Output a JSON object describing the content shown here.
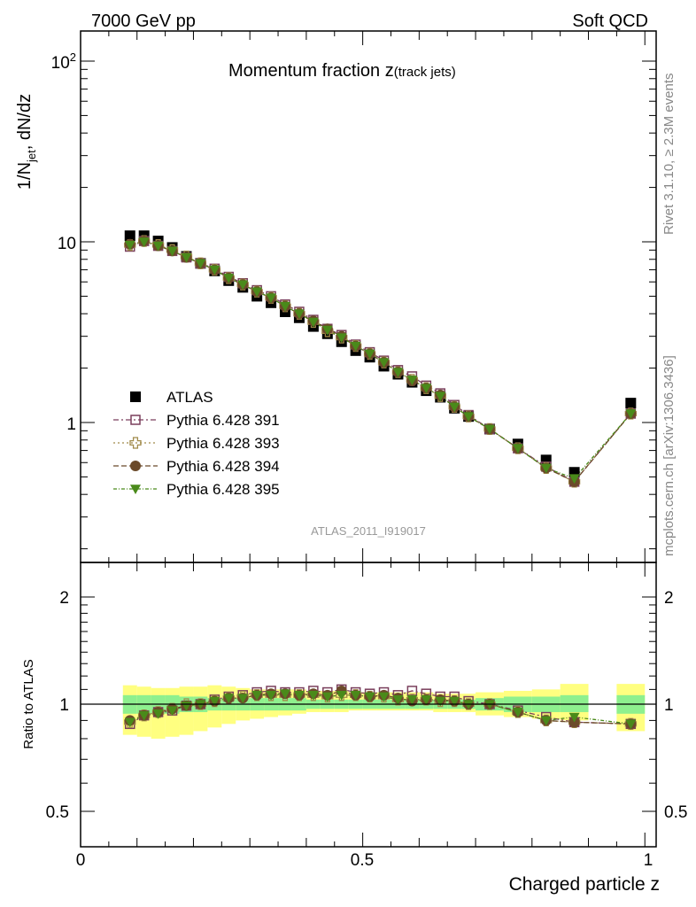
{
  "header": {
    "left": "7000 GeV pp",
    "right": "Soft QCD"
  },
  "chart_data": {
    "type": "scatter",
    "title": "Momentum fraction z",
    "title_suffix": "(track jets)",
    "xlabel": "Charged particle z",
    "ylabel": "1/N_jet dN/dz",
    "ylabel_main": "1/N",
    "ylabel_sub": "jet",
    "ylabel_tail": ", dN/dz",
    "ratio_ylabel": "Ratio to ATLAS",
    "xlim": [
      0,
      1.02
    ],
    "ylim": [
      0.18,
      150
    ],
    "ylog": true,
    "ratio_ylim": [
      0.4,
      2.3
    ],
    "ratio_ylog": true,
    "x_ticks": [
      "0",
      "0.5",
      "1"
    ],
    "y_ticks": [
      "10",
      "1"
    ],
    "y_tick_top_base": "10",
    "y_tick_top_exp": "2",
    "ratio_y_ticks": [
      "2",
      "1",
      "0.5"
    ],
    "analysis_label": "ATLAS_2011_I919017",
    "side_label_top": "Rivet 3.1.10, ≥ 2.3M events",
    "side_label_bottom": "mcplots.cern.ch [arXiv:1306.3436]",
    "x": [
      0.0875,
      0.1125,
      0.1375,
      0.1625,
      0.1875,
      0.2125,
      0.2375,
      0.2625,
      0.2875,
      0.3125,
      0.3375,
      0.3625,
      0.3875,
      0.4125,
      0.4375,
      0.4625,
      0.4875,
      0.5125,
      0.5375,
      0.5625,
      0.5875,
      0.6125,
      0.6375,
      0.6625,
      0.6875,
      0.725,
      0.775,
      0.825,
      0.875,
      0.975
    ],
    "data": {
      "name": "ATLAS",
      "values": [
        10.8,
        10.8,
        10.1,
        9.3,
        8.3,
        7.6,
        6.9,
        6.1,
        5.6,
        5.0,
        4.6,
        4.1,
        3.8,
        3.4,
        3.1,
        2.8,
        2.5,
        2.3,
        2.05,
        1.85,
        1.67,
        1.5,
        1.38,
        1.2,
        1.08,
        0.92,
        0.76,
        0.62,
        0.53,
        1.28
      ]
    },
    "series": [
      {
        "name": "Pythia 6.428 391",
        "color": "#7a3f5c",
        "marker": "square-open",
        "values": [
          9.4,
          10.1,
          9.5,
          8.9,
          8.2,
          7.6,
          7.1,
          6.4,
          5.9,
          5.4,
          5.0,
          4.5,
          4.1,
          3.7,
          3.3,
          3.05,
          2.7,
          2.45,
          2.2,
          1.95,
          1.8,
          1.6,
          1.45,
          1.25,
          1.1,
          0.92,
          0.72,
          0.57,
          0.47,
          1.12
        ]
      },
      {
        "name": "Pythia 6.428 393",
        "color": "#a08a4a",
        "marker": "cross-open",
        "values": [
          9.6,
          10.1,
          9.6,
          9.0,
          8.3,
          7.6,
          7.0,
          6.3,
          5.8,
          5.3,
          4.9,
          4.4,
          4.0,
          3.6,
          3.2,
          2.95,
          2.65,
          2.4,
          2.15,
          1.9,
          1.72,
          1.55,
          1.4,
          1.22,
          1.08,
          0.92,
          0.72,
          0.56,
          0.47,
          1.12
        ]
      },
      {
        "name": "Pythia 6.428 394",
        "color": "#6b4a2a",
        "marker": "circle",
        "values": [
          9.7,
          10.1,
          9.5,
          8.9,
          8.2,
          7.6,
          7.0,
          6.3,
          5.8,
          5.3,
          4.9,
          4.4,
          4.0,
          3.65,
          3.3,
          3.0,
          2.65,
          2.4,
          2.15,
          1.9,
          1.7,
          1.55,
          1.42,
          1.22,
          1.08,
          0.92,
          0.72,
          0.56,
          0.47,
          1.12
        ]
      },
      {
        "name": "Pythia 6.428 395",
        "color": "#4a8a1a",
        "marker": "triangle-down",
        "values": [
          9.6,
          10.0,
          9.5,
          8.9,
          8.2,
          7.6,
          7.0,
          6.3,
          5.8,
          5.3,
          4.9,
          4.4,
          4.0,
          3.6,
          3.25,
          2.95,
          2.65,
          2.4,
          2.15,
          1.9,
          1.72,
          1.55,
          1.4,
          1.22,
          1.08,
          0.92,
          0.72,
          0.56,
          0.49,
          1.12
        ]
      }
    ],
    "ratios": [
      [
        0.88,
        0.93,
        0.95,
        0.96,
        0.99,
        1.0,
        1.03,
        1.05,
        1.06,
        1.08,
        1.09,
        1.08,
        1.08,
        1.09,
        1.08,
        1.1,
        1.08,
        1.07,
        1.08,
        1.06,
        1.09,
        1.07,
        1.05,
        1.05,
        1.02,
        1.0,
        0.96,
        0.92,
        0.89,
        0.88
      ],
      [
        0.89,
        0.93,
        0.95,
        0.97,
        1.0,
        1.0,
        1.02,
        1.04,
        1.05,
        1.06,
        1.06,
        1.06,
        1.06,
        1.06,
        1.05,
        1.06,
        1.06,
        1.05,
        1.05,
        1.03,
        1.03,
        1.03,
        1.02,
        1.02,
        1.0,
        1.0,
        0.95,
        0.9,
        0.89,
        0.88
      ],
      [
        0.9,
        0.93,
        0.95,
        0.97,
        0.99,
        1.0,
        1.02,
        1.04,
        1.04,
        1.06,
        1.07,
        1.07,
        1.06,
        1.07,
        1.06,
        1.09,
        1.06,
        1.05,
        1.06,
        1.04,
        1.02,
        1.03,
        1.03,
        1.02,
        1.0,
        1.0,
        0.95,
        0.9,
        0.89,
        0.88
      ],
      [
        0.89,
        0.93,
        0.94,
        0.96,
        0.99,
        1.0,
        1.02,
        1.04,
        1.04,
        1.06,
        1.06,
        1.07,
        1.06,
        1.06,
        1.05,
        1.06,
        1.06,
        1.05,
        1.05,
        1.03,
        1.03,
        1.03,
        1.02,
        1.02,
        1.0,
        1.0,
        0.95,
        0.9,
        0.92,
        0.88
      ]
    ],
    "uncertainty_bands": {
      "x_edges": [
        0.075,
        0.1,
        0.125,
        0.15,
        0.175,
        0.2,
        0.225,
        0.25,
        0.275,
        0.3,
        0.325,
        0.35,
        0.375,
        0.4,
        0.425,
        0.45,
        0.475,
        0.5,
        0.525,
        0.55,
        0.575,
        0.6,
        0.625,
        0.65,
        0.675,
        0.7,
        0.75,
        0.8,
        0.85,
        0.9,
        0.95,
        1.0
      ],
      "stat_low": [
        0.94,
        0.94,
        0.94,
        0.94,
        0.95,
        0.95,
        0.96,
        0.96,
        0.96,
        0.96,
        0.96,
        0.96,
        0.96,
        0.97,
        0.97,
        0.97,
        0.97,
        0.97,
        0.97,
        0.97,
        0.97,
        0.97,
        0.97,
        0.97,
        0.97,
        0.96,
        0.95,
        0.95,
        0.95,
        1.0,
        0.94
      ],
      "stat_high": [
        1.06,
        1.06,
        1.06,
        1.06,
        1.05,
        1.05,
        1.04,
        1.04,
        1.04,
        1.04,
        1.04,
        1.04,
        1.04,
        1.03,
        1.03,
        1.03,
        1.03,
        1.03,
        1.03,
        1.03,
        1.03,
        1.03,
        1.03,
        1.03,
        1.03,
        1.04,
        1.05,
        1.05,
        1.06,
        1.0,
        1.06
      ],
      "total_low": [
        0.82,
        0.81,
        0.8,
        0.81,
        0.82,
        0.84,
        0.86,
        0.88,
        0.9,
        0.91,
        0.92,
        0.93,
        0.94,
        0.95,
        0.95,
        0.95,
        0.96,
        0.96,
        0.96,
        0.96,
        0.96,
        0.96,
        0.95,
        0.95,
        0.95,
        0.93,
        0.92,
        0.91,
        0.9,
        1.0,
        0.84
      ],
      "total_high": [
        1.13,
        1.12,
        1.11,
        1.11,
        1.12,
        1.12,
        1.13,
        1.12,
        1.11,
        1.1,
        1.1,
        1.1,
        1.1,
        1.09,
        1.09,
        1.09,
        1.08,
        1.08,
        1.08,
        1.08,
        1.08,
        1.08,
        1.07,
        1.07,
        1.07,
        1.08,
        1.09,
        1.1,
        1.14,
        1.0,
        1.14
      ]
    },
    "band_colors": {
      "stat": "#8ef08e",
      "total": "#ffff80"
    },
    "grid": false,
    "legend_position": "left-middle"
  }
}
